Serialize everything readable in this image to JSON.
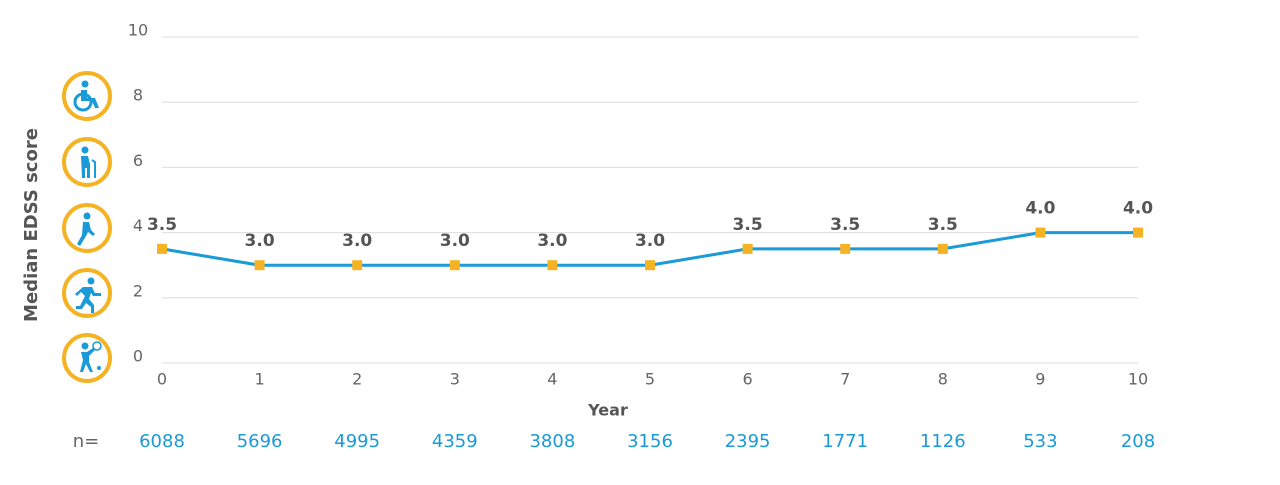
{
  "chart_data": {
    "type": "line",
    "y_label": "Median EDSS score",
    "x_label": "Year",
    "x": [
      0,
      1,
      2,
      3,
      4,
      5,
      6,
      7,
      8,
      9,
      10
    ],
    "values": [
      3.5,
      3,
      3,
      3,
      3,
      3,
      3.5,
      3.5,
      3.5,
      4,
      4
    ],
    "value_labels": [
      "3.5",
      "3.0",
      "3.0",
      "3.0",
      "3.0",
      "3.0",
      "3.5",
      "3.5",
      "3.5",
      "4.0",
      "4.0"
    ],
    "color": "#1a9ad6",
    "marker_color": "#f5b324",
    "xlim": [
      0,
      10
    ],
    "xticks": [
      0,
      1,
      2,
      3,
      4,
      5,
      6,
      7,
      8,
      9,
      10
    ],
    "ylim": [
      0,
      10
    ],
    "yticks": [
      0,
      2,
      4,
      6,
      8,
      10
    ],
    "grid": true,
    "n_label": "n=",
    "n_values": [
      6088,
      5696,
      4995,
      4359,
      3808,
      3156,
      2395,
      1771,
      1126,
      533,
      208
    ]
  }
}
